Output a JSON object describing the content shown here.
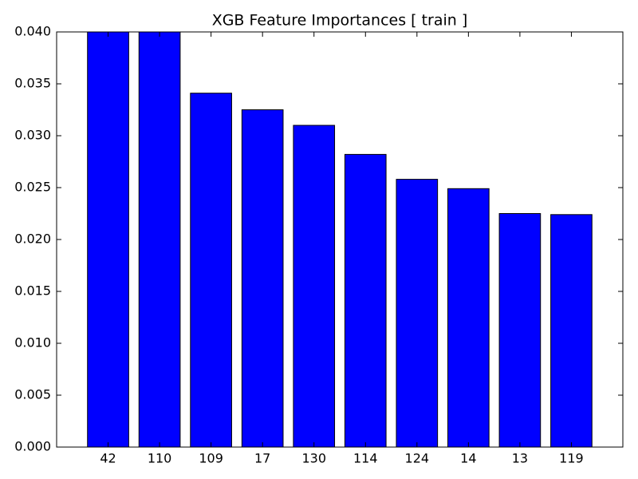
{
  "chart_data": {
    "type": "bar",
    "title": "XGB Feature Importances [ train ]",
    "categories": [
      "42",
      "110",
      "109",
      "17",
      "130",
      "114",
      "124",
      "14",
      "13",
      "119"
    ],
    "values": [
      0.04,
      0.04,
      0.0341,
      0.0325,
      0.031,
      0.0282,
      0.0258,
      0.0249,
      0.0225,
      0.0224
    ],
    "color": "#0000ff",
    "ylim": [
      0,
      0.04
    ],
    "yticks": [
      {
        "value": 0,
        "label": "0.000"
      },
      {
        "value": 0.005,
        "label": "0.005"
      },
      {
        "value": 0.01,
        "label": "0.010"
      },
      {
        "value": 0.015,
        "label": "0.015"
      },
      {
        "value": 0.02,
        "label": "0.020"
      },
      {
        "value": 0.025,
        "label": "0.025"
      },
      {
        "value": 0.03,
        "label": "0.030"
      },
      {
        "value": 0.035,
        "label": "0.035"
      },
      {
        "value": 0.04,
        "label": "0.040"
      }
    ],
    "grid": false
  }
}
